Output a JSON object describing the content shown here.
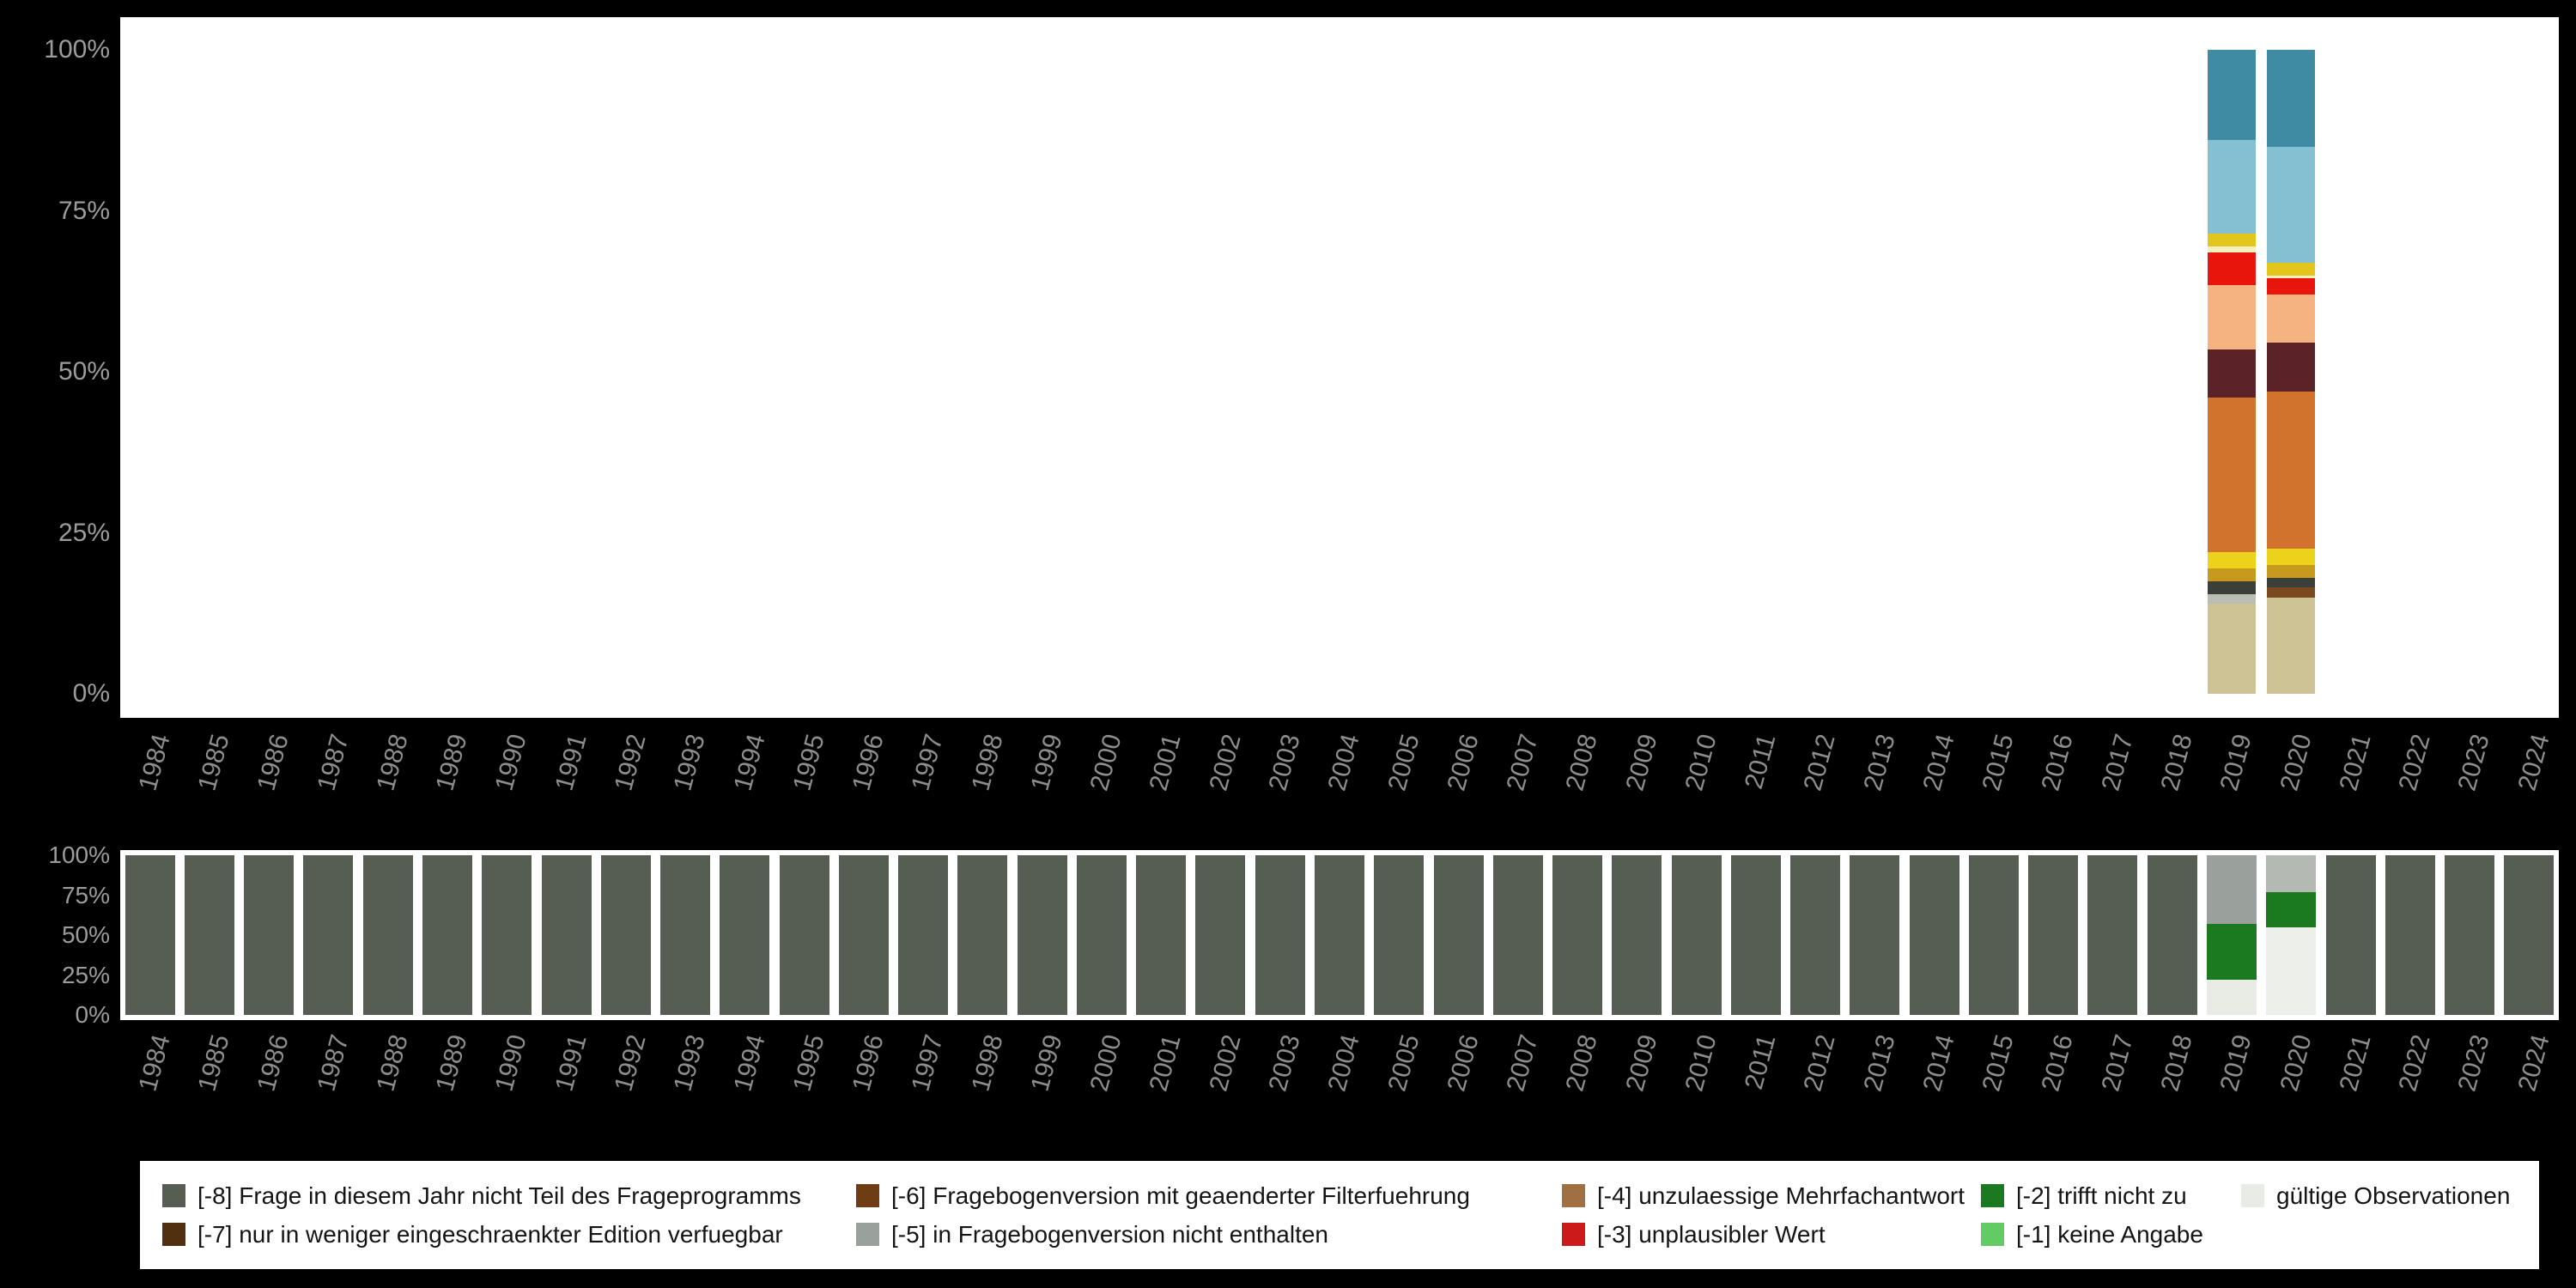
{
  "page": {
    "colors": {
      "background": "#000000",
      "plot_background": "#ffffff",
      "axis_tick_labels": "#8d8d8d",
      "y_axis_labels": "#9c9c9c"
    }
  },
  "chart_data": [
    {
      "name": "answer-category-distribution-by-year",
      "type": "bar",
      "stacked": true,
      "orientation": "vertical",
      "ylim": [
        0,
        100
      ],
      "unit": "percent",
      "grid": false,
      "y_ticks": [
        "100%",
        "75%",
        "50%",
        "25%",
        "0%"
      ],
      "categories": [
        "1984",
        "1985",
        "1986",
        "1987",
        "1988",
        "1989",
        "1990",
        "1991",
        "1992",
        "1993",
        "1994",
        "1995",
        "1996",
        "1997",
        "1998",
        "1999",
        "2000",
        "2001",
        "2002",
        "2003",
        "2004",
        "2005",
        "2006",
        "2007",
        "2008",
        "2009",
        "2010",
        "2011",
        "2012",
        "2013",
        "2014",
        "2015",
        "2016",
        "2017",
        "2018",
        "2019",
        "2020",
        "2021",
        "2022",
        "2023",
        "2024"
      ],
      "bars": {
        "2019": [
          {
            "color": "#cdc395",
            "value": 14
          },
          {
            "color": "#b9bdb4",
            "value": 1.5
          },
          {
            "color": "#3b3f39",
            "value": 2
          },
          {
            "color": "#c79a1e",
            "value": 2
          },
          {
            "color": "#ecd21a",
            "value": 2.5
          },
          {
            "color": "#d2732d",
            "value": 24
          },
          {
            "color": "#5b2327",
            "value": 7.5
          },
          {
            "color": "#f4b381",
            "value": 10
          },
          {
            "color": "#e8150d",
            "value": 5
          },
          {
            "color": "#f6f0c0",
            "value": 1
          },
          {
            "color": "#e3c51c",
            "value": 2
          },
          {
            "color": "#85bfd2",
            "value": 14.5
          },
          {
            "color": "#3e8ba3",
            "value": 14
          }
        ],
        "2020": [
          {
            "color": "#cdc395",
            "value": 15
          },
          {
            "color": "#7a4a1e",
            "value": 1.5
          },
          {
            "color": "#3b3f39",
            "value": 1.5
          },
          {
            "color": "#c79a1e",
            "value": 2
          },
          {
            "color": "#ecd21a",
            "value": 2.5
          },
          {
            "color": "#d2732d",
            "value": 24.5
          },
          {
            "color": "#5b2327",
            "value": 7.5
          },
          {
            "color": "#f4b381",
            "value": 7.5
          },
          {
            "color": "#e8150d",
            "value": 2.5
          },
          {
            "color": "#f6f0c0",
            "value": 0.5
          },
          {
            "color": "#e3c51c",
            "value": 2
          },
          {
            "color": "#85bfd2",
            "value": 18
          },
          {
            "color": "#3e8ba3",
            "value": 15
          }
        ]
      }
    },
    {
      "name": "missing-codes-distribution-by-year",
      "type": "bar",
      "stacked": true,
      "orientation": "vertical",
      "ylim": [
        0,
        100
      ],
      "unit": "percent",
      "grid": false,
      "y_ticks": [
        "100%",
        "75%",
        "50%",
        "25%",
        "0%"
      ],
      "categories": [
        "1984",
        "1985",
        "1986",
        "1987",
        "1988",
        "1989",
        "1990",
        "1991",
        "1992",
        "1993",
        "1994",
        "1995",
        "1996",
        "1997",
        "1998",
        "1999",
        "2000",
        "2001",
        "2002",
        "2003",
        "2004",
        "2005",
        "2006",
        "2007",
        "2008",
        "2009",
        "2010",
        "2011",
        "2012",
        "2013",
        "2014",
        "2015",
        "2016",
        "2017",
        "2018",
        "2019",
        "2020",
        "2021",
        "2022",
        "2023",
        "2024"
      ],
      "default_bar": [
        {
          "label": "[-8] Frage in diesem Jahr nicht Teil des Frageprogramms",
          "color": "#565e54",
          "value": 100
        }
      ],
      "bars": {
        "2019": [
          {
            "label": "gültige Observationen",
            "color": "#e9ece5",
            "value": 22
          },
          {
            "label": "[-2] trifft nicht zu",
            "color": "#1b7a1f",
            "value": 35
          },
          {
            "label": "[-5] in Fragebogenversion nicht enthalten",
            "color": "#9aa09b",
            "value": 43
          }
        ],
        "2020": [
          {
            "label": "gültige Observationen",
            "color": "#edf0ea",
            "value": 55
          },
          {
            "label": "[-2] trifft nicht zu",
            "color": "#1b7a1f",
            "value": 22
          },
          {
            "label": "[-5] in Fragebogenversion nicht enthalten",
            "color": "#b4b9b3",
            "value": 23
          }
        ]
      }
    }
  ],
  "legend": {
    "background": "#ffffff",
    "items": [
      {
        "label": "[-8] Frage in diesem Jahr nicht Teil des Frageprogramms",
        "color": "#565e54"
      },
      {
        "label": "[-7] nur in weniger eingeschraenkter Edition verfuegbar",
        "color": "#50300f"
      },
      {
        "label": "[-6] Fragebogenversion mit geaenderter Filterfuehrung",
        "color": "#6e3d14"
      },
      {
        "label": "[-5] in Fragebogenversion nicht enthalten",
        "color": "#9aa09b"
      },
      {
        "label": "[-4] unzulaessige Mehrfachantwort",
        "color": "#a07040"
      },
      {
        "label": "[-3] unplausibler Wert",
        "color": "#cc1a1a"
      },
      {
        "label": "[-2] trifft nicht zu",
        "color": "#1b7a1f"
      },
      {
        "label": "[-1] keine Angabe",
        "color": "#63cb63"
      },
      {
        "label": "gültige Observationen",
        "color": "#e9ece5"
      }
    ]
  }
}
